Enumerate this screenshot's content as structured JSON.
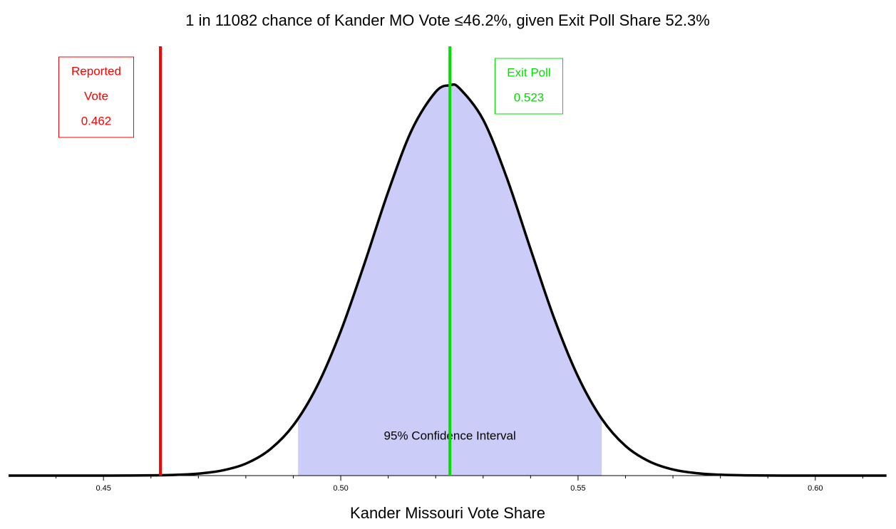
{
  "chart_data": {
    "type": "line",
    "title": "1 in 11082 chance of Kander MO Vote ≤46.2%, given Exit Poll Share 52.3%",
    "xlabel": "Kander Missouri Vote Share",
    "x": [
      0.43,
      0.435,
      0.44,
      0.445,
      0.45,
      0.455,
      0.46,
      0.465,
      0.47,
      0.475,
      0.48,
      0.485,
      0.49,
      0.495,
      0.5,
      0.505,
      0.51,
      0.515,
      0.52,
      0.523,
      0.525,
      0.53,
      0.535,
      0.54,
      0.545,
      0.55,
      0.555,
      0.56,
      0.565,
      0.57,
      0.575,
      0.58,
      0.585,
      0.59,
      0.595,
      0.6,
      0.605,
      0.61,
      0.615
    ],
    "values": [
      0,
      0,
      0.0001,
      0.0003,
      0.001,
      0.004,
      0.014,
      0.044,
      0.124,
      0.32,
      0.75,
      1.62,
      3.15,
      5.6,
      9.05,
      13.3,
      17.8,
      21.69,
      24.06,
      24.47,
      24.29,
      22.32,
      18.66,
      14.2,
      9.84,
      6.21,
      3.56,
      1.86,
      0.89,
      0.38,
      0.15,
      0.054,
      0.018,
      0.005,
      0.0014,
      0.0004,
      0.0001,
      0,
      0
    ],
    "color": "#000000",
    "ci": [
      0.491,
      0.555
    ],
    "ci_label": "95% Confidence Interval",
    "ci_color": "#ccccf9",
    "markers": [
      {
        "lines": [
          "Reported",
          "Vote"
        ],
        "value": 0.462,
        "color": "#ff0000"
      },
      {
        "lines": [
          "Exit Poll"
        ],
        "value": 0.523,
        "color": "#00e000"
      }
    ],
    "xlim": [
      0.43,
      0.617
    ],
    "ylim": [
      0,
      25
    ],
    "xticks": [
      0.45,
      {
        "value": 0.5,
        "label": "0.50"
      },
      0.55,
      {
        "value": 0.6,
        "label": "0.60"
      }
    ],
    "xminorticks": [
      0.44,
      0.46,
      0.47,
      0.48,
      0.49,
      0.51,
      0.52,
      0.53,
      0.54,
      0.56,
      0.57,
      0.58,
      0.59,
      0.61
    ]
  }
}
